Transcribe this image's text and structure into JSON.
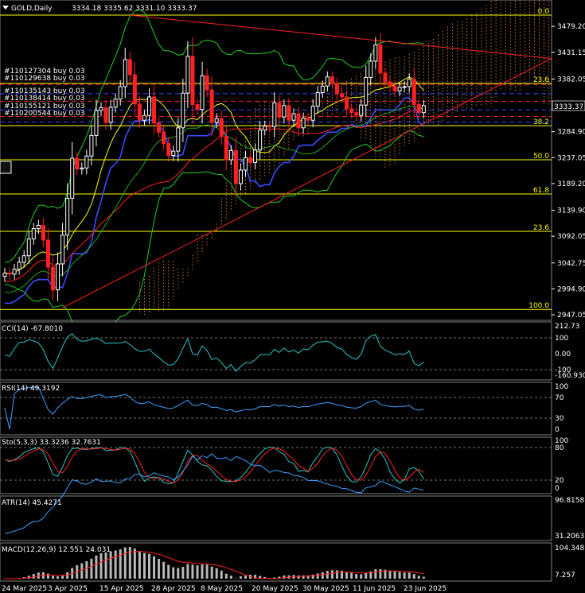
{
  "header": {
    "symbol": "GOLD,Daily",
    "ohlc": "3334.18 3335.62 3331.10 3333.37",
    "current_price": "3333.37"
  },
  "colors": {
    "background": "#000000",
    "up_candle": "#ffffff",
    "down_candle": "#ff2020",
    "fib": "#ffff00",
    "trend": "#ff2020",
    "blue": "#3a4cff",
    "green": "#1fcf1f",
    "cloud": "#ff9933",
    "indicator": "#3aa0ff"
  },
  "orders": [
    "#110127304 buy 0.03",
    "#110129638 buy 0.03",
    "#110135143 buy 0.03",
    "#110138414 buy 0.03",
    "#110155121 buy 0.03",
    "#110200544 buy 0.03"
  ],
  "chart_data": {
    "type": "candlestick",
    "symbol": "GOLD",
    "timeframe": "Daily",
    "x_labels": [
      "24 Mar 2025",
      "3 Apr 2025",
      "15 Apr 2025",
      "28 Apr 2025",
      "8 May 2025",
      "20 May 2025",
      "30 May 2025",
      "11 Jun 2025",
      "23 Jun 2025"
    ],
    "price_axis_labels": [
      "3479.20",
      "3431.15",
      "3382.05",
      "3333.37",
      "3284.90",
      "3237.05",
      "3189.20",
      "3139.90",
      "3092.05",
      "3042.75",
      "2994.90",
      "2947.05"
    ],
    "ylim": [
      2947.05,
      3500
    ],
    "fib_levels": [
      {
        "label": "0.0",
        "price": 3500.0
      },
      {
        "label": "23.6",
        "price": 3374.0
      },
      {
        "label": "38.2",
        "price": 3296.0
      },
      {
        "label": "50.0",
        "price": 3233.0
      },
      {
        "label": "61.8",
        "price": 3170.0
      },
      {
        "label": "23.6",
        "price": 3101.0
      },
      {
        "label": "100.0",
        "price": 2957.0
      }
    ],
    "close": [
      3024,
      3022,
      3031,
      3044,
      3056,
      3087,
      3106,
      3112,
      3085,
      3035,
      2993,
      3041,
      3094,
      3162,
      3236,
      3216,
      3218,
      3240,
      3278,
      3324,
      3329,
      3302,
      3330,
      3345,
      3368,
      3418,
      3390,
      3336,
      3306,
      3315,
      3349,
      3301,
      3284,
      3263,
      3241,
      3249,
      3292,
      3356,
      3424,
      3335,
      3326,
      3388,
      3362,
      3302,
      3309,
      3276,
      3233,
      3250,
      3189,
      3214,
      3237,
      3228,
      3251,
      3288,
      3295,
      3294,
      3338,
      3312,
      3333,
      3306,
      3318,
      3292,
      3310,
      3306,
      3332,
      3357,
      3369,
      3386,
      3374,
      3355,
      3349,
      3327,
      3320,
      3315,
      3334,
      3385,
      3415,
      3445,
      3393,
      3377,
      3369,
      3360,
      3367,
      3368,
      3382,
      3335,
      3320,
      3333
    ],
    "indicators": {
      "cci": {
        "label": "CCI(14) -67.8010",
        "scale": [
          "212.73",
          "100",
          "0.00",
          "-100",
          "-160.9305"
        ]
      },
      "rsi": {
        "label": "RSI(14) 49.3192",
        "scale": [
          "100",
          "70",
          "30",
          "0"
        ]
      },
      "stochastic": {
        "label": "Sto(5,3,3) 33.3236 32.7631",
        "scale": [
          "100",
          "80",
          "20",
          "0"
        ]
      },
      "atr": {
        "label": "ATR(14) 45.4271",
        "scale": [
          "96.8158",
          "31.2063"
        ]
      },
      "macd": {
        "label": "MACD(12,26,9) 12.551 24.031",
        "scale": [
          "104.348",
          "7.257"
        ]
      }
    }
  }
}
